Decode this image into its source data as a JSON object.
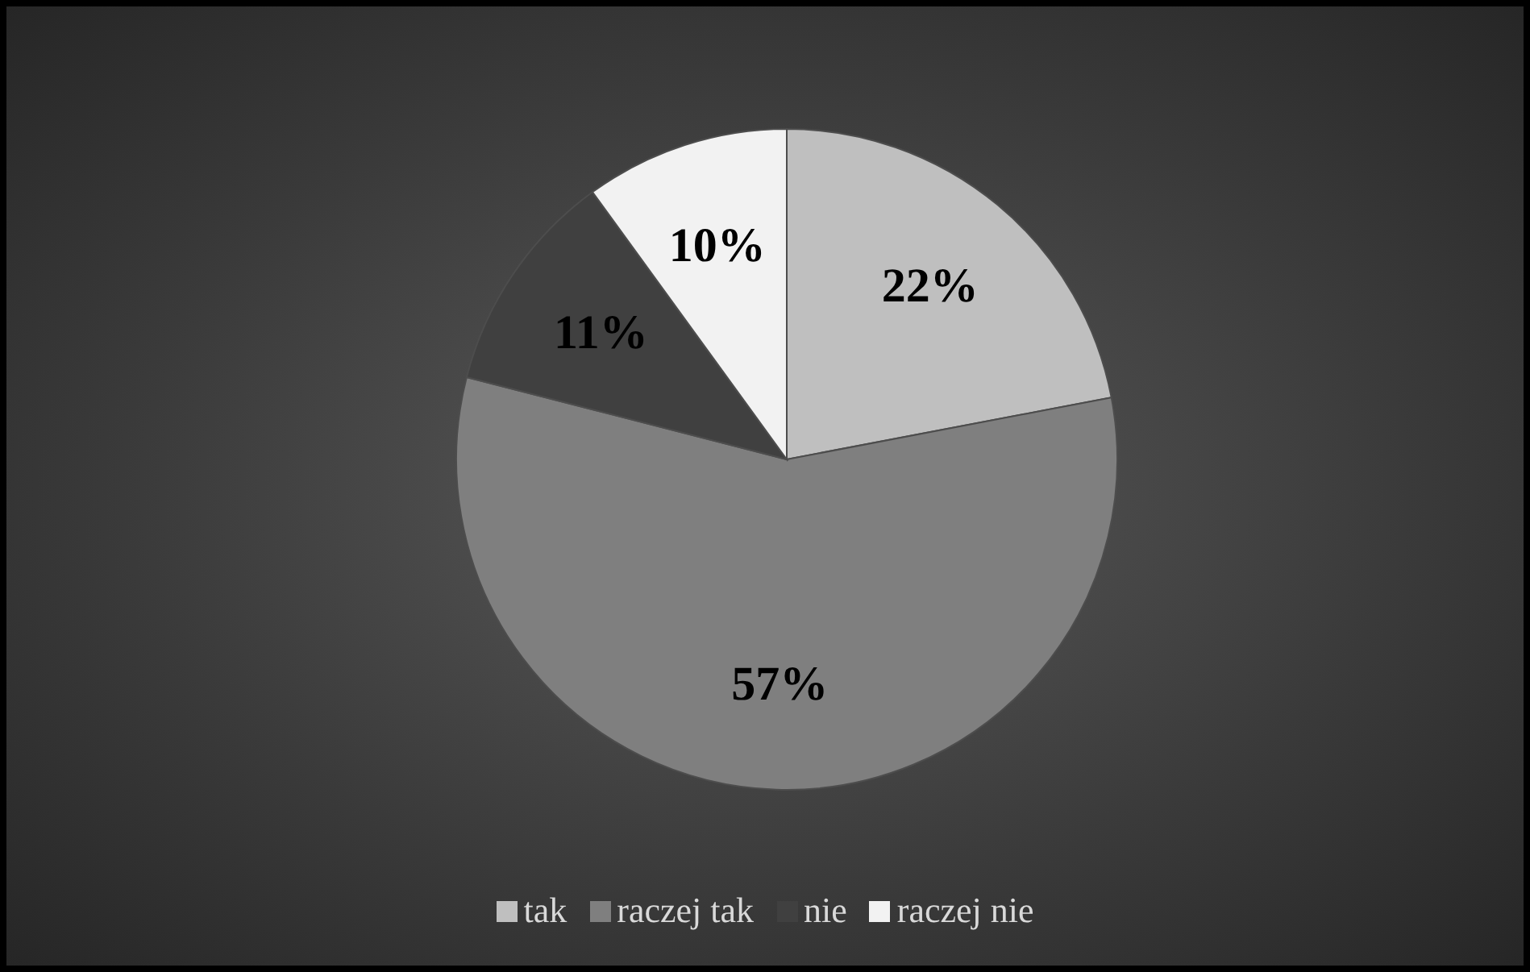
{
  "chart_data": {
    "type": "pie",
    "categories": [
      "tak",
      "raczej tak",
      "nie",
      "raczej nie"
    ],
    "values": [
      22,
      57,
      11,
      10
    ],
    "value_labels": [
      "22%",
      "57%",
      "11%",
      "10%"
    ],
    "colors": [
      "#bfbfbf",
      "#7f7f7f",
      "#404040",
      "#f2f2f2"
    ],
    "legend": "bottom"
  }
}
